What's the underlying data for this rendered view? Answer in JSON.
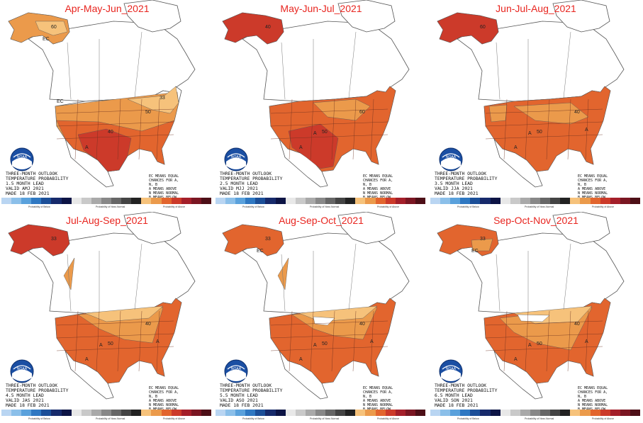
{
  "colors": {
    "title": "#e8251f",
    "ec": "#ffffff",
    "above_33": "#f6c27b",
    "above_40": "#eb9a4b",
    "above_50": "#e2652e",
    "above_60": "#cc3a2a",
    "above_70": "#a41f2a",
    "border": "#555555"
  },
  "panels": [
    {
      "title": "Apr-May-Jun_2021",
      "lead": "1.5 MONTH LEAD",
      "valid": "VALID AMJ 2021",
      "ec_labels": [
        "EC",
        "EC"
      ],
      "a_labels": [
        "A"
      ],
      "num_labels": [
        "40",
        "50",
        "60",
        "33"
      ]
    },
    {
      "title": "May-Jun-Jul_2021",
      "lead": "2.5 MONTH LEAD",
      "valid": "VALID MJJ 2021",
      "ec_labels": [],
      "a_labels": [
        "A",
        "A"
      ],
      "num_labels": [
        "50",
        "60",
        "40"
      ]
    },
    {
      "title": "Jun-Jul-Aug_2021",
      "lead": "3.5 MONTH LEAD",
      "valid": "VALID JJA 2021",
      "ec_labels": [],
      "a_labels": [
        "A",
        "A",
        "A"
      ],
      "num_labels": [
        "50",
        "40",
        "60"
      ]
    },
    {
      "title": "Jul-Aug-Sep_2021",
      "lead": "4.5 MONTH LEAD",
      "valid": "VALID JAS 2021",
      "ec_labels": [],
      "a_labels": [
        "A",
        "A",
        "A"
      ],
      "num_labels": [
        "50",
        "40",
        "33"
      ]
    },
    {
      "title": "Aug-Sep-Oct_2021",
      "lead": "5.5 MONTH LEAD",
      "valid": "VALID ASO 2021",
      "ec_labels": [
        "EC"
      ],
      "a_labels": [
        "A",
        "A",
        "A"
      ],
      "num_labels": [
        "50",
        "40",
        "33"
      ]
    },
    {
      "title": "Sep-Oct-Nov_2021",
      "lead": "6.5 MONTH LEAD",
      "valid": "VALID SON 2021",
      "ec_labels": [
        "EC"
      ],
      "a_labels": [
        "A",
        "A",
        "A"
      ],
      "num_labels": [
        "50",
        "40",
        "33"
      ]
    }
  ],
  "common": {
    "heading1": "THREE-MONTH OUTLOOK",
    "heading2": "TEMPERATURE PROBABILITY",
    "made": "MADE 18 FEB 2021",
    "legend": [
      "EC MEANS EQUAL",
      "CHANCES FOR A,",
      "N, B",
      "A MEANS ABOVE",
      "N MEANS NORMAL",
      "B MEANS BELOW"
    ],
    "logo_text": "NOAA",
    "bar_left": "Probability of Below",
    "bar_mid": "Probability of Near-Normal",
    "bar_right": "Probability of Above"
  },
  "bar_colors": [
    "#b9d5f2",
    "#8bbfe9",
    "#5aa1dc",
    "#2f78c2",
    "#1c4f98",
    "#172a6b",
    "#0d1445",
    "#e8e8e8",
    "#c9c9c9",
    "#a9a9a9",
    "#888888",
    "#666666",
    "#444444",
    "#222222",
    "#f6c27b",
    "#eb9a4b",
    "#e2652e",
    "#cc3a2a",
    "#a41f2a",
    "#7a1622",
    "#4d0f17"
  ]
}
